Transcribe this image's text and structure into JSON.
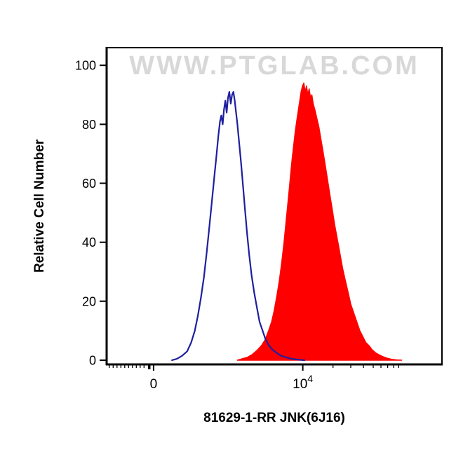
{
  "chart_data": {
    "type": "area",
    "title": "",
    "xlabel": "81629-1-RR JNK(6J16)",
    "ylabel": "Relative Cell Number",
    "watermark": "WWW.PTGLAB.COM",
    "ylim": [
      0,
      100
    ],
    "y_ticks": [
      0,
      20,
      40,
      60,
      80,
      100
    ],
    "x_ticks": [
      {
        "label": "0",
        "superscript": "",
        "pos": 0.14
      },
      {
        "label": "10",
        "superscript": "4",
        "pos": 0.585
      }
    ],
    "x_minor_ticks": [
      0.008,
      0.0195,
      0.031,
      0.0425,
      0.054,
      0.0655,
      0.077,
      0.0885,
      0.1,
      0.1115,
      0.675,
      0.728,
      0.766,
      0.795,
      0.818,
      0.838,
      0.856,
      0.871
    ],
    "x_medium_ticks": [
      0.127
    ],
    "grid": false,
    "legend_position": "none",
    "colors": {
      "control": "#1f1fa0",
      "sample": "#fe0000",
      "watermark": "#d8d8d8",
      "axis": "#000000"
    },
    "series": [
      {
        "name": "Sample stained with 81629-1-RR JNK(6J16) (red filled histogram)",
        "type": "filled",
        "color": "#fe0000",
        "points": [
          [
            0.39,
            0
          ],
          [
            0.405,
            0.5
          ],
          [
            0.42,
            1
          ],
          [
            0.435,
            2
          ],
          [
            0.45,
            3.5
          ],
          [
            0.462,
            5
          ],
          [
            0.473,
            7
          ],
          [
            0.483,
            10
          ],
          [
            0.492,
            13
          ],
          [
            0.5,
            17
          ],
          [
            0.508,
            22
          ],
          [
            0.515,
            27
          ],
          [
            0.522,
            33
          ],
          [
            0.529,
            40
          ],
          [
            0.536,
            48
          ],
          [
            0.542,
            55
          ],
          [
            0.548,
            62
          ],
          [
            0.553,
            68
          ],
          [
            0.558,
            73
          ],
          [
            0.563,
            78
          ],
          [
            0.568,
            82
          ],
          [
            0.572,
            85
          ],
          [
            0.576,
            88
          ],
          [
            0.58,
            91
          ],
          [
            0.584,
            93
          ],
          [
            0.588,
            94
          ],
          [
            0.592,
            91
          ],
          [
            0.596,
            93
          ],
          [
            0.6,
            90
          ],
          [
            0.604,
            92
          ],
          [
            0.608,
            89
          ],
          [
            0.612,
            90
          ],
          [
            0.616,
            87
          ],
          [
            0.621,
            85
          ],
          [
            0.627,
            82
          ],
          [
            0.633,
            79
          ],
          [
            0.639,
            75
          ],
          [
            0.645,
            71
          ],
          [
            0.652,
            66
          ],
          [
            0.659,
            61
          ],
          [
            0.666,
            56
          ],
          [
            0.673,
            51
          ],
          [
            0.68,
            46
          ],
          [
            0.688,
            41
          ],
          [
            0.696,
            36
          ],
          [
            0.704,
            31
          ],
          [
            0.712,
            27
          ],
          [
            0.72,
            23
          ],
          [
            0.728,
            19
          ],
          [
            0.737,
            16
          ],
          [
            0.746,
            13
          ],
          [
            0.755,
            10
          ],
          [
            0.764,
            8
          ],
          [
            0.773,
            6
          ],
          [
            0.782,
            5
          ],
          [
            0.792,
            3.5
          ],
          [
            0.802,
            2.5
          ],
          [
            0.813,
            1.8
          ],
          [
            0.824,
            1.2
          ],
          [
            0.836,
            0.7
          ],
          [
            0.85,
            0.3
          ],
          [
            0.865,
            0.1
          ],
          [
            0.88,
            0
          ]
        ]
      },
      {
        "name": "Control (blue open histogram)",
        "type": "outline",
        "color": "#1f1fa0",
        "points": [
          [
            0.195,
            0
          ],
          [
            0.21,
            0.5
          ],
          [
            0.225,
            1.5
          ],
          [
            0.24,
            3
          ],
          [
            0.252,
            6
          ],
          [
            0.263,
            10
          ],
          [
            0.272,
            15
          ],
          [
            0.281,
            21
          ],
          [
            0.29,
            28
          ],
          [
            0.298,
            36
          ],
          [
            0.306,
            45
          ],
          [
            0.314,
            54
          ],
          [
            0.321,
            62
          ],
          [
            0.328,
            70
          ],
          [
            0.333,
            76
          ],
          [
            0.338,
            81
          ],
          [
            0.342,
            83
          ],
          [
            0.346,
            80
          ],
          [
            0.35,
            85
          ],
          [
            0.354,
            88
          ],
          [
            0.358,
            84
          ],
          [
            0.362,
            89
          ],
          [
            0.366,
            91
          ],
          [
            0.37,
            87
          ],
          [
            0.374,
            90
          ],
          [
            0.378,
            91
          ],
          [
            0.382,
            88
          ],
          [
            0.386,
            84
          ],
          [
            0.39,
            80
          ],
          [
            0.395,
            74
          ],
          [
            0.4,
            68
          ],
          [
            0.406,
            60
          ],
          [
            0.412,
            52
          ],
          [
            0.418,
            44
          ],
          [
            0.425,
            36
          ],
          [
            0.432,
            29
          ],
          [
            0.44,
            23
          ],
          [
            0.448,
            18
          ],
          [
            0.456,
            13
          ],
          [
            0.465,
            10
          ],
          [
            0.474,
            7
          ],
          [
            0.484,
            5
          ],
          [
            0.495,
            3.5
          ],
          [
            0.507,
            2.5
          ],
          [
            0.52,
            1.5
          ],
          [
            0.535,
            1
          ],
          [
            0.55,
            0.5
          ],
          [
            0.57,
            0.2
          ],
          [
            0.59,
            0
          ]
        ]
      }
    ]
  }
}
